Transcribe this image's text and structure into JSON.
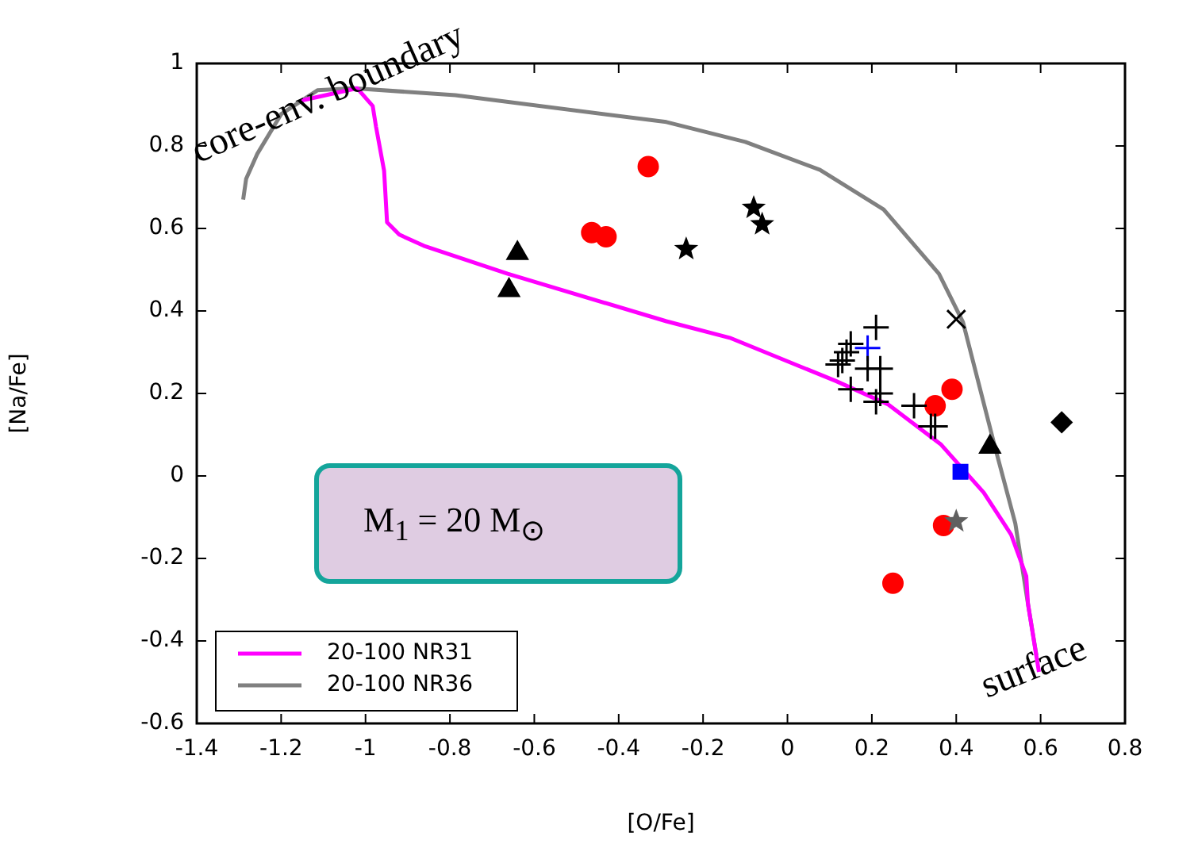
{
  "chart_data": {
    "type": "scatter",
    "xlabel": "[O/Fe]",
    "ylabel": "[Na/Fe]",
    "xlim": [
      -1.4,
      0.8
    ],
    "xticks": [
      -1.4,
      -1.2,
      -1,
      -0.8,
      -0.6,
      -0.4,
      -0.2,
      0,
      0.2,
      0.4,
      0.6,
      0.8
    ],
    "ylim": [
      -0.6,
      1
    ],
    "yticks": [
      -0.6,
      -0.4,
      -0.2,
      0,
      0.2,
      0.4,
      0.6,
      0.8,
      1
    ],
    "grid": false,
    "legend": "bottom left",
    "annotations": [
      "core-env. boundary",
      "surface",
      "M$_{1}$ = 20 M$_{⊙}$"
    ],
    "series": [
      {
        "name": "20-100 NR31",
        "type": "line",
        "color": "#ff00ff",
        "marker": "none",
        "line_style": "solid",
        "x": [
          -1.152,
          -1.02,
          -0.983,
          -0.975,
          -0.956,
          -0.949,
          -0.92,
          -0.862,
          -0.663,
          -0.287,
          -0.137,
          0.115,
          0.239,
          0.363,
          0.465,
          0.53,
          0.566,
          0.57,
          0.596
        ],
        "values": [
          0.91,
          0.94,
          0.897,
          0.846,
          0.74,
          0.615,
          0.585,
          0.558,
          0.49,
          0.375,
          0.335,
          0.23,
          0.173,
          0.077,
          -0.04,
          -0.142,
          -0.243,
          -0.31,
          -0.475
        ]
      },
      {
        "name": "20-100 NR36",
        "type": "line",
        "color": "#808080",
        "marker": "none",
        "line_style": "solid",
        "x": [
          -1.29,
          -1.283,
          -1.257,
          -1.2,
          -1.114,
          -1.028,
          -0.787,
          -0.287,
          -0.1,
          0.077,
          0.228,
          0.359,
          0.416,
          0.49,
          0.54,
          0.57,
          0.59
        ],
        "values": [
          0.67,
          0.72,
          0.78,
          0.877,
          0.935,
          0.94,
          0.923,
          0.858,
          0.81,
          0.742,
          0.646,
          0.49,
          0.373,
          0.077,
          -0.115,
          -0.31,
          -0.435
        ]
      },
      {
        "color": "#ff0000",
        "marker": "circle",
        "x": [
          -0.33,
          -0.464,
          -0.43
        ],
        "values": [
          0.75,
          0.59,
          0.58
        ]
      },
      {
        "color": "#000000",
        "marker": "triangle",
        "x": [
          -0.64,
          -0.66
        ],
        "values": [
          0.54,
          0.45
        ]
      },
      {
        "color": "#000000",
        "marker": "star",
        "x": [
          -0.08,
          -0.06,
          -0.24
        ],
        "values": [
          0.65,
          0.61,
          0.55
        ]
      },
      {
        "color": "#000000",
        "marker": "cross",
        "x": [
          0.21,
          0.15,
          0.14,
          0.13,
          0.12,
          0.19,
          0.22,
          0.15,
          0.22,
          0.21,
          0.3,
          0.34,
          0.35
        ],
        "values": [
          0.36,
          0.32,
          0.3,
          0.28,
          0.27,
          0.26,
          0.26,
          0.21,
          0.2,
          0.18,
          0.17,
          0.12,
          0.12
        ]
      },
      {
        "color": "#000000",
        "marker": "x",
        "x": [
          0.4
        ],
        "values": [
          0.38
        ]
      },
      {
        "color": "#0000ff",
        "marker": "cross",
        "x": [
          0.19
        ],
        "values": [
          0.31
        ]
      },
      {
        "color": "#ff0000",
        "marker": "circle",
        "x": [
          0.39,
          0.35,
          0.37,
          0.25
        ],
        "values": [
          0.21,
          0.17,
          -0.12,
          -0.26
        ]
      },
      {
        "color": "#0000ff",
        "marker": "square",
        "x": [
          0.41
        ],
        "values": [
          0.01
        ]
      },
      {
        "color": "#000000",
        "marker": "triangle",
        "x": [
          0.48
        ],
        "values": [
          0.07
        ]
      },
      {
        "color": "#000000",
        "marker": "diamond",
        "x": [
          0.65
        ],
        "values": [
          0.13
        ]
      },
      {
        "color": "#606060",
        "marker": "star",
        "x": [
          0.4
        ],
        "values": [
          -0.11
        ]
      }
    ]
  }
}
